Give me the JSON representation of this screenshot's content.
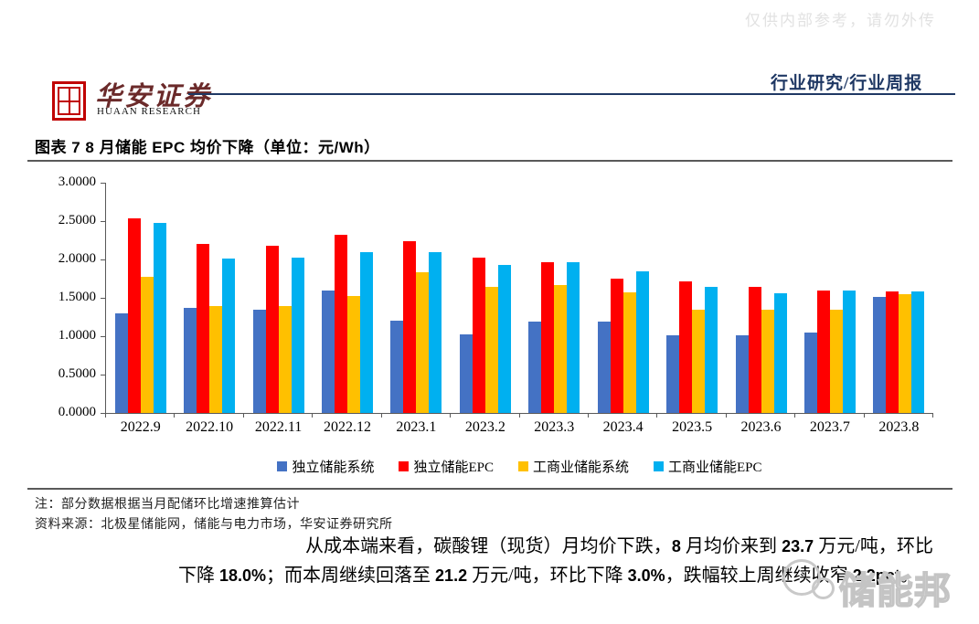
{
  "watermark_top": "仅供内部参考，请勿外传",
  "header": {
    "brand_cn": "华安证券",
    "brand_en": "HUAAN RESEARCH",
    "section_label": "行业研究/行业周报",
    "accent_color": "#1f3864",
    "seal_color": "#c00000"
  },
  "figure": {
    "title": "图表 7 8 月储能 EPC 均价下降（单位：元/Wh）"
  },
  "chart_data": {
    "type": "bar",
    "categories": [
      "2022.9",
      "2022.10",
      "2022.11",
      "2022.12",
      "2023.1",
      "2023.2",
      "2023.3",
      "2023.4",
      "2023.5",
      "2023.6",
      "2023.7",
      "2023.8"
    ],
    "series": [
      {
        "name": "独立储能系统",
        "color": "#4472C4",
        "values": [
          1.3,
          1.37,
          1.35,
          1.6,
          1.2,
          1.02,
          1.19,
          1.19,
          1.01,
          1.01,
          1.05,
          1.51
        ]
      },
      {
        "name": "独立储能EPC",
        "color": "#FF0000",
        "values": [
          2.53,
          2.2,
          2.18,
          2.32,
          2.24,
          2.02,
          1.97,
          1.75,
          1.72,
          1.64,
          1.6,
          1.58
        ]
      },
      {
        "name": "工商业储能系统",
        "color": "#FFC000",
        "values": [
          1.77,
          1.39,
          1.39,
          1.52,
          1.83,
          1.64,
          1.67,
          1.57,
          1.34,
          1.34,
          1.35,
          1.55
        ]
      },
      {
        "name": "工商业储能EPC",
        "color": "#00B0F0",
        "values": [
          2.48,
          2.01,
          2.02,
          2.09,
          2.09,
          1.93,
          1.97,
          1.85,
          1.64,
          1.56,
          1.59,
          1.58
        ]
      }
    ],
    "title": "8 月储能 EPC 均价下降",
    "unit": "元/Wh",
    "xlabel": "",
    "ylabel": "",
    "ylim": [
      0,
      3
    ],
    "y_ticks": [
      "3.0000",
      "2.5000",
      "2.0000",
      "1.5000",
      "1.0000",
      "0.5000",
      "0.0000"
    ],
    "grid": false,
    "legend_position": "bottom",
    "axis_color": "#595959"
  },
  "notes": {
    "note": "注：部分数据根据当月配储环比增速推算估计",
    "source": "资料来源：北极星储能网，储能与电力市场，华安证券研究所"
  },
  "paragraph": {
    "segments": [
      {
        "text": "从成本端来看，碳酸锂（现货）月均价下跌，",
        "num": false
      },
      {
        "text": "8",
        "num": true
      },
      {
        "text": " 月均价来到 ",
        "num": false
      },
      {
        "text": "23.7",
        "num": true
      },
      {
        "text": " 万元/吨，环比下降 ",
        "num": false
      },
      {
        "text": "18.0%",
        "num": true
      },
      {
        "text": "；而本周继续回落至 ",
        "num": false
      },
      {
        "text": "21.2",
        "num": true
      },
      {
        "text": " 万元/吨，环比下降 ",
        "num": false
      },
      {
        "text": "3.0%",
        "num": true
      },
      {
        "text": "，跌幅较上周继续收窄 ",
        "num": false
      },
      {
        "text": "2.2pct",
        "num": true
      },
      {
        "text": "。",
        "num": false
      }
    ]
  },
  "watermark_bottom": "储能邦"
}
